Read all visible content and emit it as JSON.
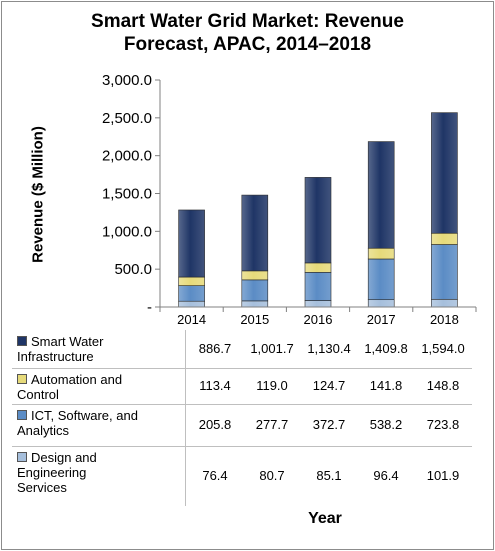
{
  "chart_data": {
    "type": "bar",
    "stacked": true,
    "title": "Smart Water Grid Market: Revenue Forecast, APAC, 2014–2018",
    "title_lines": [
      "Smart Water Grid Market: Revenue",
      "Forecast, APAC, 2014–2018"
    ],
    "xlabel": "Year",
    "ylabel": "Revenue ($ Million)",
    "ylim": [
      0,
      3000
    ],
    "yticks": [
      0,
      500,
      1000,
      1500,
      2000,
      2500,
      3000
    ],
    "ytick_labels": [
      "-",
      "500.0",
      "1,000.0",
      "1,500.0",
      "2,000.0",
      "2,500.0",
      "3,000.0"
    ],
    "categories": [
      "2014",
      "2015",
      "2016",
      "2017",
      "2018"
    ],
    "legend": "data table below chart",
    "series": [
      {
        "name": "Design and Engineering Services",
        "name_lines": [
          "Design and",
          "Engineering",
          "Services"
        ],
        "color": "#a6bfdc",
        "values": [
          76.4,
          80.7,
          85.1,
          96.4,
          101.9
        ],
        "labels": [
          "76.4",
          "80.7",
          "85.1",
          "96.4",
          "101.9"
        ]
      },
      {
        "name": "ICT, Software, and Analytics",
        "name_lines": [
          "ICT, Software, and",
          "Analytics"
        ],
        "color": "#5b8cc5",
        "values": [
          205.8,
          277.7,
          372.7,
          538.2,
          723.8
        ],
        "labels": [
          "205.8",
          "277.7",
          "372.7",
          "538.2",
          "723.8"
        ]
      },
      {
        "name": "Automation and Control",
        "name_lines": [
          "Automation and",
          "Control"
        ],
        "color": "#e6da7a",
        "values": [
          113.4,
          119.0,
          124.7,
          141.8,
          148.8
        ],
        "labels": [
          "113.4",
          "119.0",
          "124.7",
          "141.8",
          "148.8"
        ]
      },
      {
        "name": "Smart Water Infrastructure",
        "name_lines": [
          "Smart Water",
          "Infrastructure"
        ],
        "color": "#1f3566",
        "values": [
          886.7,
          1001.7,
          1130.4,
          1409.8,
          1594.0
        ],
        "labels": [
          "886.7",
          "1,001.7",
          "1,130.4",
          "1,409.8",
          "1,594.0"
        ]
      }
    ]
  }
}
